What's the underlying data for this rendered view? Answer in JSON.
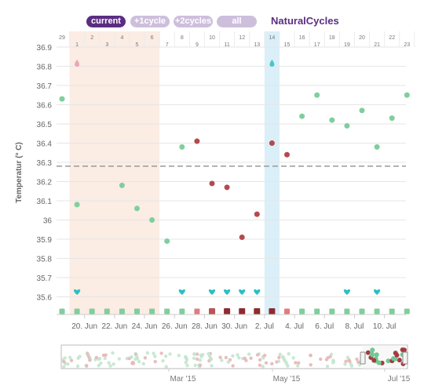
{
  "app": {
    "brand": "NaturalCycles"
  },
  "range_buttons": [
    "current",
    "+1cycle",
    "+2cycles",
    "all"
  ],
  "colors": {
    "accent": "#5b2d82",
    "period_band": "#fbece4",
    "ovulation_band": "#dbeff8",
    "green_dot": "#7fcf9c",
    "red_dot": "#b44a4e",
    "coverline": "#999999",
    "heart": "#2bbfc4",
    "drop": "#e89ab2"
  },
  "chart_data": {
    "type": "scatter",
    "title": "",
    "ylabel": "Temperatur (° C)",
    "ylim": [
      35.55,
      36.95
    ],
    "y_ticks": [
      "36.9",
      "36.8",
      "36.7",
      "36.6",
      "36.5",
      "36.4",
      "36.3",
      "36.2",
      "36.1",
      "36",
      "35.9",
      "35.8",
      "35.7",
      "35.6"
    ],
    "y_tick_values": [
      36.9,
      36.8,
      36.7,
      36.6,
      36.5,
      36.4,
      36.3,
      36.2,
      36.1,
      36.0,
      35.9,
      35.8,
      35.7,
      35.6
    ],
    "day_numbers": [
      "29",
      "1",
      "2",
      "3",
      "4",
      "5",
      "6",
      "7",
      "8",
      "9",
      "10",
      "11",
      "12",
      "13",
      "14",
      "15",
      "16",
      "17",
      "18",
      "19",
      "20",
      "21",
      "22",
      "23"
    ],
    "date_labels": [
      {
        "label": "20. Jun",
        "day_index": 1.5
      },
      {
        "label": "22. Jun",
        "day_index": 3.5
      },
      {
        "label": "24. Jun",
        "day_index": 5.5
      },
      {
        "label": "26. Jun",
        "day_index": 7.5
      },
      {
        "label": "28. Jun",
        "day_index": 9.5
      },
      {
        "label": "30. Jun",
        "day_index": 11.5
      },
      {
        "label": "2. Jul",
        "day_index": 13.5
      },
      {
        "label": "4. Jul",
        "day_index": 15.5
      },
      {
        "label": "6. Jul",
        "day_index": 17.5
      },
      {
        "label": "8. Jul",
        "day_index": 19.5
      },
      {
        "label": "10. Jul",
        "day_index": 21.5
      }
    ],
    "period_days": [
      1,
      6
    ],
    "ovulation_day": 14,
    "coverline": 36.28,
    "points": [
      {
        "day": 0,
        "y": 36.63,
        "c": "green"
      },
      {
        "day": 1,
        "y": 36.08,
        "c": "green"
      },
      {
        "day": 4,
        "y": 36.18,
        "c": "green"
      },
      {
        "day": 5,
        "y": 36.06,
        "c": "green"
      },
      {
        "day": 6,
        "y": 36.0,
        "c": "green"
      },
      {
        "day": 7,
        "y": 35.89,
        "c": "green"
      },
      {
        "day": 8,
        "y": 36.38,
        "c": "green"
      },
      {
        "day": 9,
        "y": 36.41,
        "c": "red"
      },
      {
        "day": 10,
        "y": 36.19,
        "c": "red"
      },
      {
        "day": 11,
        "y": 36.17,
        "c": "red"
      },
      {
        "day": 12,
        "y": 35.91,
        "c": "red"
      },
      {
        "day": 13,
        "y": 36.03,
        "c": "red"
      },
      {
        "day": 14,
        "y": 36.4,
        "c": "red"
      },
      {
        "day": 15,
        "y": 36.34,
        "c": "red"
      },
      {
        "day": 16,
        "y": 36.54,
        "c": "green"
      },
      {
        "day": 17,
        "y": 36.65,
        "c": "green"
      },
      {
        "day": 18,
        "y": 36.52,
        "c": "green"
      },
      {
        "day": 19,
        "y": 36.49,
        "c": "green"
      },
      {
        "day": 20,
        "y": 36.57,
        "c": "green"
      },
      {
        "day": 21,
        "y": 36.38,
        "c": "green"
      },
      {
        "day": 22,
        "y": 36.53,
        "c": "green"
      },
      {
        "day": 23,
        "y": 36.65,
        "c": "green"
      }
    ],
    "hearts": [
      1,
      8,
      10,
      11,
      12,
      13,
      19,
      21
    ],
    "drops": [
      1,
      14
    ],
    "day_markers": [
      "green",
      "green",
      "green",
      "green",
      "green",
      "green",
      "green",
      "green",
      "green",
      "red-light",
      "red",
      "red-dark",
      "red-dark",
      "red-dark",
      "red-dark",
      "red-light",
      "green",
      "green",
      "green",
      "green",
      "green",
      "green",
      "green",
      "green"
    ],
    "navigator": {
      "month_labels": [
        "Mar '15",
        "May '15",
        "Jul '15"
      ]
    }
  }
}
